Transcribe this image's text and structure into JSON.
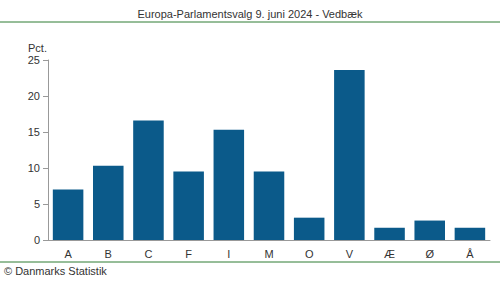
{
  "chart_data": {
    "type": "bar",
    "title": "Europa-Parlamentsvalg 9. juni 2024 - Vedbæk",
    "ylabel": "Pct.",
    "annotations": [
      "© Danmarks Statistik"
    ],
    "categories": [
      "A",
      "B",
      "C",
      "F",
      "I",
      "M",
      "O",
      "V",
      "Æ",
      "Ø",
      "Å"
    ],
    "values": [
      7.0,
      10.3,
      16.6,
      9.5,
      15.3,
      9.5,
      3.1,
      23.6,
      1.7,
      2.7,
      1.7
    ],
    "color": "#0b5a8a",
    "ylim": [
      0,
      25
    ],
    "yticks": [
      0,
      5,
      10,
      15,
      20,
      25
    ],
    "grid": false
  }
}
